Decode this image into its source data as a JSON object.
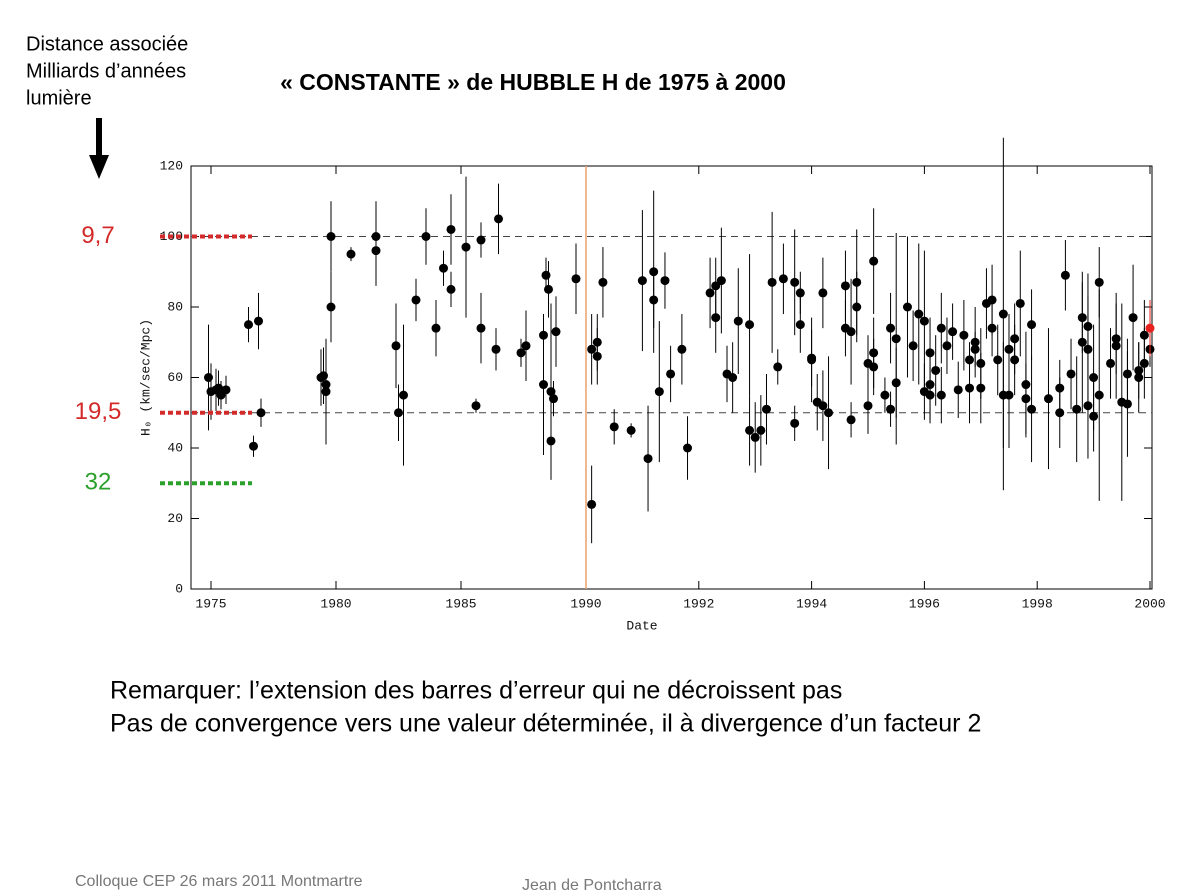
{
  "title": "« CONSTANTE » de HUBBLE H de 1975 à 2000",
  "side_note": [
    "Distance associée",
    "Milliards d’années",
    "lumière"
  ],
  "side_markers": [
    {
      "label": "9,7",
      "value": 100,
      "color": "#d42a2a"
    },
    {
      "label": "19,5",
      "value": 50,
      "color": "#d42a2a"
    },
    {
      "label": "32",
      "value": 30,
      "color": "#2ca02c"
    }
  ],
  "remarks": [
    "Remarquer: l’extension des barres d’erreur qui ne décroissent pas",
    "Pas de convergence vers une valeur déterminée, il à divergence d’un facteur 2"
  ],
  "footer": {
    "left": "Colloque CEP 26 mars 2011 Montmartre",
    "right": "Jean de Pontcharra"
  },
  "chart_data": [
    {
      "type": "scatter",
      "y_label": "H₀ (km/sec/Mpc)",
      "xlim": [
        1974.2,
        1990
      ],
      "xticks": [
        1975,
        1980,
        1985,
        1990
      ],
      "ylim": [
        0,
        120
      ],
      "yticks": [
        0,
        20,
        40,
        60,
        80,
        100,
        120
      ],
      "hlines": [
        50,
        100
      ],
      "vline": 1990,
      "vline_color": "#e8a070",
      "series": [
        {
          "color": "#000000",
          "x": [
            1974.9,
            1975.0,
            1975.2,
            1975.3,
            1975.4,
            1975.6,
            1976.5,
            1976.7,
            1976.9,
            1977.0,
            1979.4,
            1979.5,
            1979.6,
            1979.6,
            1979.8,
            1979.8,
            1980.6,
            1981.6,
            1981.6,
            1982.4,
            1982.5,
            1982.7,
            1983.2,
            1983.6,
            1984.0,
            1984.3,
            1984.6,
            1984.6,
            1985.2,
            1985.6,
            1985.8,
            1985.8,
            1986.4,
            1986.5,
            1987.4,
            1987.6,
            1988.3,
            1988.3,
            1988.4,
            1988.5,
            1988.6,
            1988.6,
            1988.7,
            1988.8,
            1989.6
          ],
          "values": [
            60,
            56,
            56.5,
            57,
            55,
            56.5,
            75,
            40.5,
            76,
            50,
            60,
            60.5,
            58,
            56,
            80,
            100,
            95,
            100,
            96,
            69,
            50,
            55,
            82,
            100,
            74,
            91,
            102,
            85,
            97,
            52,
            99,
            74,
            68,
            105,
            67,
            69,
            72,
            58,
            89,
            85,
            56,
            42,
            54,
            73,
            88
          ],
          "errors": [
            15,
            8,
            6,
            5,
            4,
            4,
            5,
            3,
            8,
            4,
            8,
            8,
            8,
            15,
            10,
            10,
            2,
            10,
            10,
            12,
            8,
            20,
            6,
            8,
            8,
            5,
            10,
            5,
            20,
            2,
            5,
            10,
            6,
            10,
            4,
            10,
            5,
            20,
            5,
            8,
            25,
            11,
            5,
            10,
            10
          ]
        }
      ]
    },
    {
      "type": "scatter",
      "x_label": "Date",
      "xlim": [
        1990,
        2000
      ],
      "xticks": [
        1992,
        1994,
        1996,
        1998,
        2000
      ],
      "ylim": [
        0,
        120
      ],
      "series": [
        {
          "color": "#000000",
          "x": [
            1990.1,
            1990.1,
            1990.2,
            1990.2,
            1990.3,
            1990.5,
            1990.8,
            1991.0,
            1991.1,
            1991.2,
            1991.2,
            1991.3,
            1991.4,
            1991.5,
            1991.7,
            1991.8,
            1992.2,
            1992.3,
            1992.3,
            1992.4,
            1992.5,
            1992.6,
            1992.7,
            1992.9,
            1992.9,
            1993.0,
            1993.1,
            1993.2,
            1993.3,
            1993.4,
            1993.5,
            1993.7,
            1993.7,
            1993.8,
            1993.8,
            1994.0,
            1994.0,
            1994.1,
            1994.2,
            1994.2,
            1994.3,
            1994.6,
            1994.6,
            1994.7,
            1994.7,
            1994.8,
            1994.8,
            1995.0,
            1995.0,
            1995.1,
            1995.1,
            1995.1,
            1995.3,
            1995.4,
            1995.4,
            1995.5,
            1995.5,
            1995.7,
            1995.8,
            1995.9,
            1996.0,
            1996.0,
            1996.1,
            1996.1,
            1996.1,
            1996.2,
            1996.3,
            1996.3,
            1996.4,
            1996.5,
            1996.6,
            1996.7,
            1996.8,
            1996.8,
            1996.9,
            1996.9,
            1997.0,
            1997.0,
            1997.1,
            1997.2,
            1997.2,
            1997.3,
            1997.4,
            1997.4,
            1997.5,
            1997.5,
            1997.6,
            1997.6,
            1997.7,
            1997.8,
            1997.8,
            1997.9,
            1997.9,
            1998.2,
            1998.4,
            1998.4,
            1998.5,
            1998.6,
            1998.7,
            1998.8,
            1998.8,
            1998.9,
            1998.9,
            1998.9,
            1999.0,
            1999.0,
            1999.1,
            1999.1,
            1999.3,
            1999.4,
            1999.4,
            1999.5,
            1999.6,
            1999.6,
            1999.7,
            1999.8,
            1999.8,
            1999.9,
            1999.9,
            2000.0
          ],
          "values": [
            24,
            68,
            70,
            66,
            87,
            46,
            45,
            87.5,
            37,
            90,
            82,
            56,
            87.5,
            61,
            68,
            40,
            84,
            86,
            77,
            87.5,
            61,
            60,
            76,
            75,
            45,
            43,
            45,
            51,
            87,
            63,
            88,
            47,
            87,
            84,
            75,
            65,
            65.5,
            53,
            52,
            84,
            50,
            74,
            86,
            48,
            73,
            87,
            80,
            52,
            64,
            67,
            63,
            93,
            55,
            74,
            51,
            58.5,
            71,
            80,
            69,
            78,
            56,
            76,
            67,
            55,
            58,
            62,
            55,
            74,
            69,
            73,
            56.5,
            72,
            57,
            65,
            70,
            68,
            57,
            64,
            81,
            82,
            74,
            65,
            55,
            78,
            68,
            55,
            71,
            65,
            81,
            54,
            58,
            75,
            51,
            54,
            57,
            50,
            89,
            61,
            51,
            77,
            70,
            74.5,
            52,
            68,
            60,
            49,
            55,
            87,
            64,
            71,
            69,
            53,
            61,
            52.5,
            77,
            62,
            60,
            64,
            72,
            68
          ],
          "errors": [
            11,
            10,
            8,
            8,
            10,
            5,
            2,
            20,
            15,
            23,
            8,
            20,
            8,
            8,
            10,
            9,
            10,
            8,
            10,
            15,
            8,
            10,
            15,
            20,
            10,
            10,
            10,
            10,
            20,
            5,
            10,
            5,
            15,
            6,
            8,
            12,
            8,
            8,
            10,
            10,
            16,
            8,
            10,
            5,
            15,
            15,
            10,
            8,
            8,
            10,
            8,
            15,
            5,
            10,
            5,
            10,
            30,
            20,
            10,
            20,
            8,
            20,
            10,
            8,
            10,
            10,
            8,
            10,
            8,
            8,
            8,
            10,
            10,
            5,
            10,
            5,
            10,
            10,
            10,
            10,
            8,
            10,
            15,
            50,
            10,
            15,
            10,
            10,
            15,
            10,
            15,
            10,
            15,
            20,
            8,
            10,
            10,
            10,
            15,
            10,
            20,
            15,
            15,
            15,
            15,
            10,
            30,
            10,
            10,
            10,
            15,
            28,
            10,
            15,
            15,
            8,
            10,
            10,
            10,
            5
          ]
        },
        {
          "color": "#e82020",
          "x": [
            2000.0
          ],
          "values": [
            74
          ],
          "errors": [
            8
          ]
        }
      ]
    }
  ]
}
